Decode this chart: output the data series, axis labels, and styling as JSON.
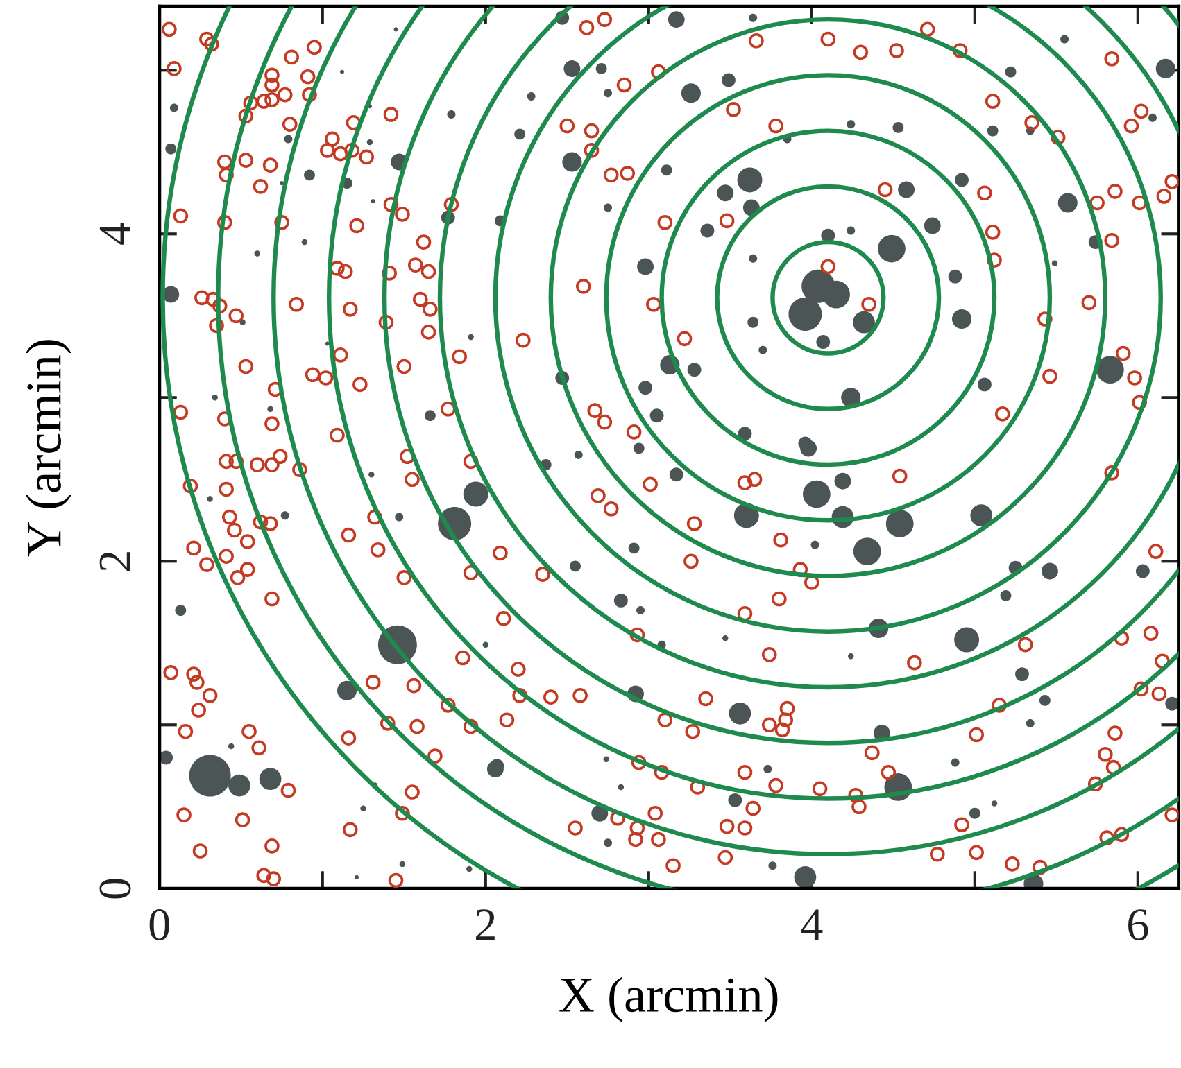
{
  "chart_data": {
    "type": "scatter",
    "xlabel": "X (arcmin)",
    "ylabel": "Y (arcmin)",
    "xlim": [
      0,
      6.25
    ],
    "ylim": [
      0,
      5.39
    ],
    "xticks": [
      0,
      {
        "value": 1,
        "label": null
      },
      2,
      {
        "value": 3,
        "label": null
      },
      4,
      {
        "value": 5,
        "label": null
      },
      6
    ],
    "yticks": [
      0,
      {
        "value": 1,
        "label": null
      },
      2,
      {
        "value": 3,
        "label": null
      },
      4,
      {
        "value": 5,
        "label": null
      }
    ],
    "series": [
      {
        "type": "bubble",
        "color": "#4b5556",
        "x": [
          1.45,
          1.12,
          0.09,
          0.07,
          0.79,
          1.47,
          0.92,
          1.79,
          1.15,
          1.31,
          0.75,
          1.77,
          0.89,
          0.6,
          0.07,
          0.51,
          1.03,
          1.66,
          0.34,
          0.68,
          1.91,
          1.29,
          1.29,
          2.47,
          3.17,
          2.53,
          2.71,
          2.28,
          2.21,
          2.75,
          3.26,
          3.49,
          3.64,
          2.53,
          3.11,
          2.75,
          2.09,
          3.62,
          3.47,
          3.63,
          2.98,
          3.36,
          3.85,
          3.64,
          3.7,
          3.13,
          3.28,
          2.98,
          3.05,
          2.47,
          3.59,
          3.96,
          3.64,
          3.96,
          4.04,
          4.07,
          4.1,
          4.49,
          4.58,
          4.74,
          4.88,
          4.92,
          4.15,
          4.32,
          4.24,
          5.06,
          5.57,
          6.17,
          5.22,
          5.11,
          4.92,
          5.83,
          4.24,
          4.53,
          5.55,
          6.09,
          5.34,
          5.49,
          5.74,
          4.24,
          0.31,
          0.49,
          0.68,
          0.04,
          0.13,
          1.46,
          1.81,
          1.94,
          1.15,
          0.31,
          0.77,
          1.47,
          2.0,
          1.32,
          1.25,
          1.49,
          1.9,
          1.21,
          0.44,
          2.07,
          1.3,
          3.17,
          2.94,
          3.6,
          4.03,
          3.98,
          2.83,
          2.91,
          2.55,
          2.92,
          3.56,
          2.06,
          2.7,
          3.53,
          3.73,
          3.96,
          3.76,
          3.08,
          2.74,
          2.83,
          2.75,
          2.95,
          3.47,
          4.02,
          2.37,
          2.57,
          4.19,
          4.19,
          4.54,
          4.34,
          5.04,
          5.46,
          4.95,
          5.25,
          5.19,
          5.29,
          4.41,
          4.53,
          5.43,
          5.34,
          6.03,
          6.21,
          4.24,
          4.88,
          5.0,
          5.36,
          5.12,
          4.43
        ],
        "values": [
          5.25,
          4.99,
          4.77,
          4.52,
          4.58,
          4.44,
          4.36,
          4.73,
          4.31,
          4.2,
          4.31,
          4.1,
          3.95,
          3.88,
          3.63,
          3.46,
          3.33,
          2.89,
          3.0,
          2.93,
          3.37,
          4.56,
          4.78,
          5.32,
          5.31,
          5.01,
          5.01,
          4.84,
          4.61,
          4.86,
          4.86,
          4.94,
          5.32,
          4.44,
          4.39,
          4.16,
          4.08,
          4.33,
          4.25,
          4.16,
          3.8,
          4.02,
          4.58,
          3.46,
          3.29,
          3.2,
          3.17,
          3.06,
          2.89,
          3.12,
          2.78,
          2.72,
          3.85,
          3.51,
          3.68,
          3.34,
          3.99,
          3.91,
          4.27,
          4.05,
          3.74,
          3.48,
          3.63,
          3.46,
          3.0,
          3.08,
          4.19,
          5.01,
          4.99,
          4.63,
          4.33,
          3.17,
          4.67,
          4.65,
          5.19,
          4.71,
          4.63,
          3.82,
          3.95,
          4.02,
          0.69,
          0.63,
          0.67,
          0.8,
          1.7,
          1.49,
          2.23,
          2.41,
          1.21,
          2.38,
          2.28,
          2.27,
          1.49,
          0.63,
          0.49,
          0.15,
          0.12,
          0.07,
          0.87,
          0.75,
          2.53,
          2.53,
          2.69,
          2.28,
          2.41,
          2.69,
          1.76,
          2.08,
          1.97,
          1.19,
          1.07,
          0.73,
          0.46,
          0.54,
          0.73,
          0.07,
          0.14,
          1.49,
          0.79,
          0.62,
          0.28,
          1.7,
          1.53,
          2.1,
          2.59,
          2.65,
          2.49,
          2.27,
          2.23,
          2.06,
          2.28,
          1.94,
          1.52,
          1.96,
          1.79,
          1.31,
          1.59,
          0.62,
          1.15,
          1.01,
          1.94,
          1.13,
          1.42,
          0.77,
          0.46,
          0.03,
          0.52,
          0.95
        ],
        "sizes": [
          0.01,
          0.01,
          0.04,
          0.07,
          0.04,
          0.16,
          0.07,
          0.04,
          0.07,
          0.01,
          0.01,
          0.11,
          0.02,
          0.02,
          0.16,
          0.02,
          0.01,
          0.07,
          0.02,
          0.02,
          0.02,
          0.02,
          0.01,
          0.11,
          0.16,
          0.16,
          0.07,
          0.04,
          0.07,
          0.04,
          0.22,
          0.11,
          0.04,
          0.22,
          0.07,
          0.04,
          0.07,
          0.36,
          0.16,
          0.16,
          0.16,
          0.11,
          0.04,
          0.07,
          0.04,
          0.22,
          0.11,
          0.11,
          0.11,
          0.11,
          0.11,
          0.11,
          0.04,
          0.64,
          0.64,
          0.11,
          0.11,
          0.44,
          0.16,
          0.16,
          0.11,
          0.22,
          0.44,
          0.28,
          0.22,
          0.11,
          0.22,
          0.22,
          0.07,
          0.07,
          0.11,
          0.44,
          0.04,
          0.07,
          0.04,
          0.04,
          0.04,
          0.02,
          0.11,
          0.04,
          1,
          0.28,
          0.28,
          0.11,
          0.07,
          0.87,
          0.64,
          0.36,
          0.22,
          0.02,
          0.04,
          0.04,
          0.02,
          0.02,
          0.02,
          0.02,
          0.02,
          0.01,
          0.02,
          0.11,
          0.02,
          0.11,
          0.07,
          0.36,
          0.44,
          0.16,
          0.11,
          0.07,
          0.07,
          0.16,
          0.28,
          0.16,
          0.16,
          0.11,
          0.04,
          0.28,
          0.04,
          0.04,
          0.02,
          0.02,
          0.04,
          0.04,
          0.02,
          0.04,
          0.07,
          0.04,
          0.16,
          0.28,
          0.44,
          0.44,
          0.28,
          0.16,
          0.36,
          0.11,
          0.07,
          0.11,
          0.22,
          0.44,
          0.07,
          0.04,
          0.11,
          0.11,
          0.02,
          0.04,
          0.07,
          0.22,
          0.02,
          0.16
        ]
      },
      {
        "color": "#c43a22",
        "marker": "circle",
        "x": [
          0.06,
          0.29,
          0.32,
          0.09,
          0.95,
          0.81,
          0.69,
          0.69,
          0.91,
          0.77,
          0.92,
          0.69,
          0.64,
          0.56,
          0.53,
          0.8,
          1.19,
          1.42,
          1.06,
          1.03,
          1.11,
          1.18,
          1.27,
          0.4,
          0.41,
          0.53,
          0.68,
          0.62,
          0.13,
          0.4,
          0.75,
          1.21,
          1.42,
          1.49,
          1.79,
          1.62,
          1.57,
          1.65,
          1.09,
          1.14,
          1.41,
          0.26,
          0.33,
          0.37,
          0.35,
          0.47,
          0.84,
          1.17,
          1.6,
          1.66,
          1.65,
          1.39,
          0.53,
          1.11,
          0.94,
          1.02,
          1.23,
          1.5,
          1.84,
          0.71,
          0.13,
          0.4,
          0.69,
          1.09,
          1.77,
          0.41,
          0.47,
          0.6,
          0.69,
          0.74,
          0.86,
          0.19,
          0.41,
          0.43,
          0.46,
          0.54,
          0.21,
          0.29,
          0.41,
          0.54,
          0.48,
          0.69,
          0.62,
          0.68,
          1.16,
          1.32,
          1.34,
          1.5,
          1.52,
          1.55,
          1.91,
          1.91,
          0.07,
          0.21,
          0.23,
          0.31,
          0.24,
          0.16,
          0.55,
          0.61,
          0.79,
          0.15,
          0.51,
          0.69,
          0.25,
          0.64,
          0.7,
          1.17,
          1.45,
          1.49,
          1.55,
          1.16,
          1.4,
          1.58,
          1.69,
          1.31,
          1.56,
          1.77,
          1.91,
          1.86,
          2.62,
          2.73,
          3.06,
          2.85,
          2.5,
          2.65,
          2.65,
          2.77,
          2.87,
          3.1,
          3.48,
          2.6,
          3.03,
          3.22,
          2.23,
          2.67,
          2.73,
          2.91,
          3.52,
          3.78,
          3.66,
          4.1,
          4.1,
          4.71,
          4.52,
          4.3,
          4.91,
          5.11,
          5.35,
          5.51,
          5.84,
          6.02,
          5.96,
          4.45,
          5.06,
          5.11,
          5.12,
          4.35,
          5.75,
          5.86,
          6.01,
          6.16,
          6.21,
          5.84,
          5.7,
          5.43,
          5.91,
          5.98,
          6.01,
          5.46,
          5.17,
          2.09,
          2.35,
          2.11,
          2.69,
          2.77,
          3.01,
          3.28,
          3.26,
          3.59,
          3.65,
          3.81,
          3.93,
          4.0,
          3.8,
          3.59,
          3.74,
          2.93,
          2.2,
          2.21,
          2.4,
          2.58,
          2.13,
          3.1,
          3.27,
          3.35,
          3.85,
          3.84,
          3.74,
          3.82,
          2.94,
          3.08,
          3.3,
          3.59,
          3.78,
          4.05,
          3.64,
          2.55,
          2.81,
          2.93,
          3.04,
          2.92,
          3.06,
          3.48,
          3.59,
          3.47,
          3.15,
          4.54,
          5.84,
          6.11,
          4.63,
          5.31,
          5.9,
          6.08,
          6.15,
          6.02,
          6.13,
          5.15,
          5.01,
          5.86,
          5.8,
          5.85,
          5.74,
          4.37,
          4.47,
          4.27,
          4.29,
          4.92,
          4.77,
          5.01,
          5.23,
          5.4,
          5.81,
          5.9,
          6.21
        ],
        "values": [
          5.25,
          5.19,
          5.16,
          5.01,
          5.14,
          5.08,
          4.97,
          4.91,
          4.96,
          4.85,
          4.85,
          4.82,
          4.81,
          4.8,
          4.72,
          4.67,
          4.68,
          4.73,
          4.58,
          4.51,
          4.49,
          4.51,
          4.47,
          4.44,
          4.36,
          4.45,
          4.42,
          4.29,
          4.11,
          4.07,
          4.07,
          4.05,
          4.18,
          4.12,
          4.18,
          3.95,
          3.81,
          3.77,
          3.79,
          3.77,
          3.76,
          3.61,
          3.6,
          3.56,
          3.44,
          3.5,
          3.57,
          3.54,
          3.6,
          3.54,
          3.4,
          3.46,
          3.19,
          3.26,
          3.14,
          3.12,
          3.08,
          3.19,
          3.25,
          3.05,
          2.91,
          2.87,
          2.84,
          2.77,
          2.93,
          2.61,
          2.61,
          2.59,
          2.59,
          2.64,
          2.56,
          2.46,
          2.44,
          2.27,
          2.19,
          2.12,
          2.08,
          1.98,
          2.03,
          1.95,
          1.9,
          1.77,
          2.24,
          2.23,
          2.16,
          2.27,
          2.07,
          1.9,
          2.64,
          2.5,
          2.61,
          1.93,
          1.32,
          1.31,
          1.26,
          1.18,
          1.09,
          0.96,
          0.96,
          0.86,
          0.6,
          0.45,
          0.42,
          0.26,
          0.23,
          0.08,
          0.06,
          0.36,
          0.05,
          0.46,
          0.59,
          0.92,
          1.01,
          0.99,
          0.81,
          1.26,
          1.24,
          1.12,
          0.99,
          1.41,
          5.26,
          5.31,
          4.99,
          4.91,
          4.66,
          4.63,
          4.51,
          4.36,
          4.37,
          4.07,
          4.08,
          3.68,
          3.57,
          3.36,
          3.35,
          2.92,
          2.85,
          2.79,
          4.76,
          4.66,
          5.18,
          5.19,
          3.8,
          5.25,
          5.12,
          5.11,
          5.12,
          4.81,
          4.68,
          4.59,
          5.07,
          4.75,
          4.66,
          4.27,
          4.25,
          4.01,
          3.84,
          3.57,
          4.19,
          4.26,
          4.19,
          4.23,
          4.32,
          3.96,
          3.58,
          3.48,
          3.27,
          3.12,
          2.97,
          3.13,
          2.9,
          2.05,
          1.92,
          1.65,
          2.4,
          2.32,
          2.47,
          2.23,
          2.0,
          2.48,
          2.5,
          2.13,
          1.95,
          1.87,
          1.77,
          1.68,
          1.43,
          1.55,
          1.34,
          1.18,
          1.17,
          1.18,
          1.03,
          1.03,
          0.96,
          1.16,
          1.1,
          1.03,
          1.0,
          0.97,
          0.77,
          0.71,
          0.62,
          0.71,
          0.63,
          0.61,
          0.49,
          0.37,
          0.43,
          0.37,
          0.46,
          0.3,
          0.3,
          0.38,
          0.37,
          0.19,
          0.14,
          2.52,
          2.54,
          2.06,
          1.38,
          1.49,
          1.53,
          1.56,
          1.39,
          1.22,
          1.19,
          1.12,
          0.94,
          0.95,
          0.82,
          0.74,
          0.64,
          0.83,
          0.71,
          0.57,
          0.5,
          0.39,
          0.21,
          0.22,
          0.15,
          0.13,
          0.31,
          0.33,
          0.45
        ]
      }
    ]
  }
}
